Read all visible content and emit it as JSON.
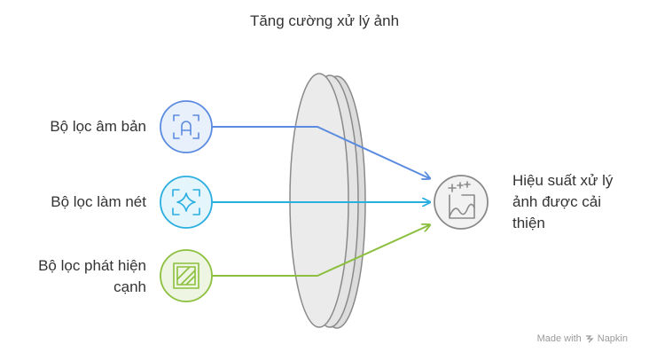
{
  "title": "Tăng cường xử lý ảnh",
  "inputs": [
    {
      "label": "Bộ lọc âm bản",
      "icon": "a-frame-icon",
      "color": "#5b8be0",
      "fill": "#e8f0fb"
    },
    {
      "label": "Bộ lọc làm nét",
      "icon": "sparkle-frame-icon",
      "color": "#29aee0",
      "fill": "#e4f5fc"
    },
    {
      "label": "Bộ lọc phát hiện cạnh",
      "icon": "edge-square-icon",
      "color": "#8bbf3d",
      "fill": "#eef6e3"
    }
  ],
  "output": {
    "label": "Hiệu suất xử lý ảnh được cải thiện",
    "icon": "image-sparkle-icon",
    "color": "#8a8a8a",
    "fill": "#f2f2f2"
  },
  "lens": {
    "name": "lens-icon"
  },
  "watermark": {
    "text": "Made with",
    "brand": "Napkin"
  }
}
